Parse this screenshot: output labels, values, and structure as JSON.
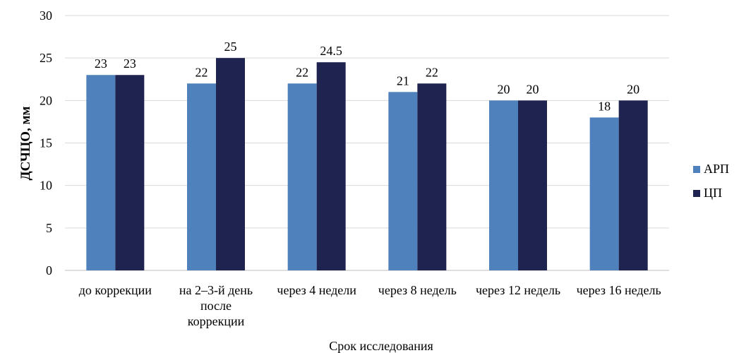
{
  "chart_data": {
    "type": "bar",
    "categories": [
      [
        "до коррекции"
      ],
      [
        "на 2–3-й день",
        "после",
        "коррекции"
      ],
      [
        "через 4 недели"
      ],
      [
        "через 8 недель"
      ],
      [
        "через 12 недель"
      ],
      [
        "через 16 недель"
      ]
    ],
    "series": [
      {
        "name": "АРП",
        "color": "#4f81bd",
        "values": [
          23,
          22,
          22,
          21,
          20,
          18
        ],
        "labels": [
          "23",
          "22",
          "22",
          "21",
          "20",
          "18"
        ]
      },
      {
        "name": "ЦП",
        "color": "#1f2350",
        "values": [
          23,
          25,
          24.5,
          22,
          20,
          20
        ],
        "labels": [
          "23",
          "25",
          "24.5",
          "22",
          "20",
          "20"
        ]
      }
    ],
    "title": "",
    "xlabel": "Срок исследования",
    "ylabel": "ДСЧЦО, мм",
    "ylim": [
      0,
      30
    ],
    "yticks": [
      0,
      5,
      10,
      15,
      20,
      25,
      30
    ],
    "grid": true,
    "legend_position": "right"
  }
}
